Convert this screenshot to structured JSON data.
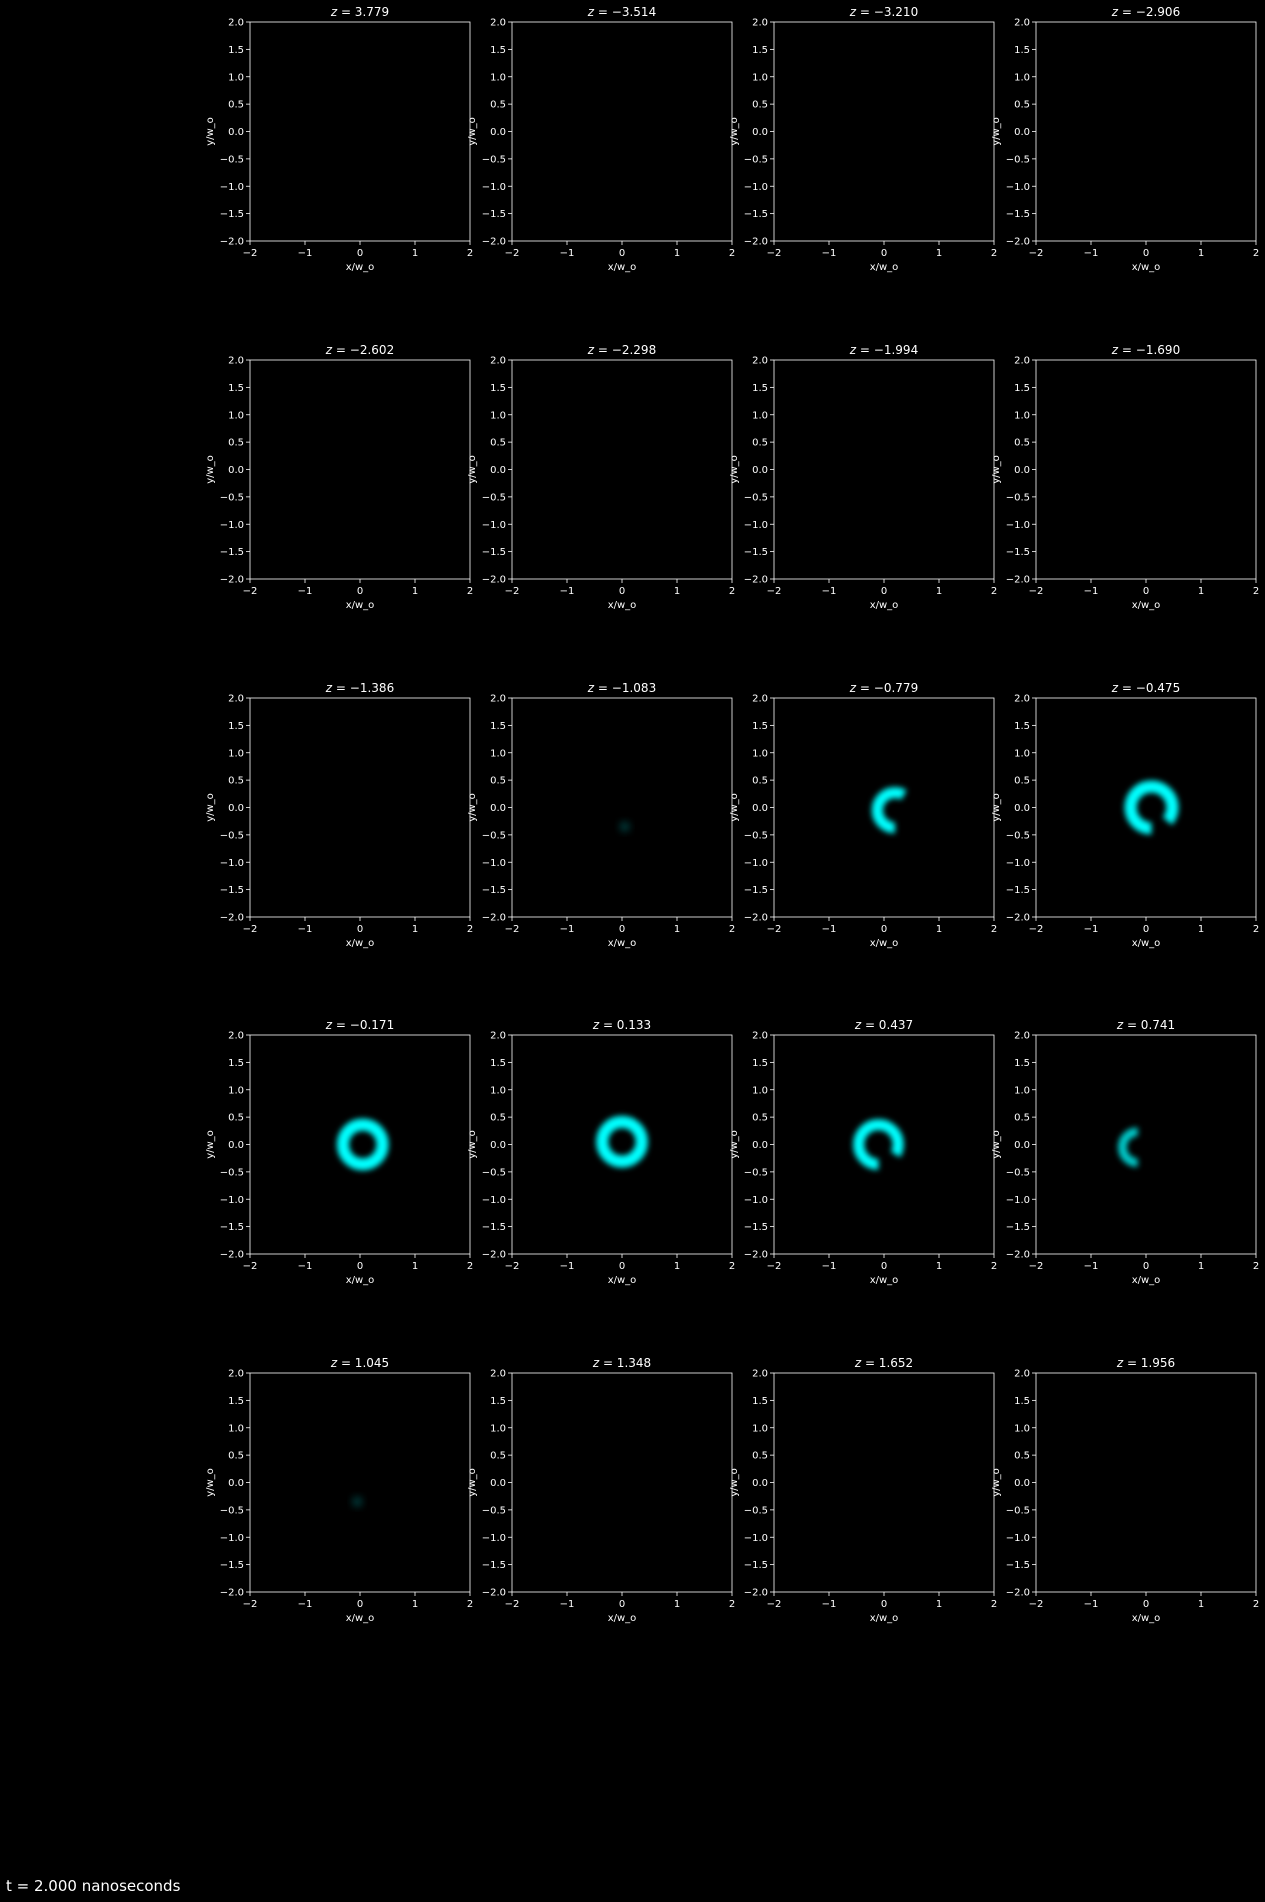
{
  "figure": {
    "background": "#000000",
    "foreground": "#ffffff",
    "ring_color": "#00ffff",
    "footer": "t = 2.000 nanoseconds"
  },
  "chart_data": {
    "type": "heatmap",
    "layout": "5x4 grid of panels",
    "xlabel": "x/w_o",
    "ylabel": "y/w_o",
    "xlim": [
      -2,
      2
    ],
    "ylim": [
      -2,
      2
    ],
    "xticks": [
      "-2",
      "-1",
      "0",
      "1",
      "2"
    ],
    "yticks": [
      "2.0",
      "1.5",
      "1.0",
      "0.5",
      "0.0",
      "-0.5",
      "-1.0",
      "-1.5",
      "-2.0"
    ],
    "grid": false,
    "colormap": "black to cyan",
    "panels": [
      {
        "z": "3.779",
        "intensity": 0,
        "x_center": 0,
        "y_center": 0,
        "ring_radius": 0,
        "ring_width": 0,
        "gap_angle_deg": 0
      },
      {
        "z": "−3.514",
        "intensity": 0,
        "x_center": 0,
        "y_center": 0,
        "ring_radius": 0,
        "ring_width": 0,
        "gap_angle_deg": 0
      },
      {
        "z": "−3.210",
        "intensity": 0,
        "x_center": 0,
        "y_center": 0,
        "ring_radius": 0,
        "ring_width": 0,
        "gap_angle_deg": 0
      },
      {
        "z": "−2.906",
        "intensity": 0,
        "x_center": 0,
        "y_center": 0,
        "ring_radius": 0,
        "ring_width": 0,
        "gap_angle_deg": 0
      },
      {
        "z": "−2.602",
        "intensity": 0,
        "x_center": 0,
        "y_center": 0,
        "ring_radius": 0,
        "ring_width": 0,
        "gap_angle_deg": 0
      },
      {
        "z": "−2.298",
        "intensity": 0,
        "x_center": 0,
        "y_center": 0,
        "ring_radius": 0,
        "ring_width": 0,
        "gap_angle_deg": 0
      },
      {
        "z": "−1.994",
        "intensity": 0,
        "x_center": 0,
        "y_center": 0,
        "ring_radius": 0,
        "ring_width": 0,
        "gap_angle_deg": 0
      },
      {
        "z": "−1.690",
        "intensity": 0,
        "x_center": 0,
        "y_center": 0,
        "ring_radius": 0,
        "ring_width": 0,
        "gap_angle_deg": 0
      },
      {
        "z": "−1.386",
        "intensity": 0,
        "x_center": 0,
        "y_center": 0,
        "ring_radius": 0,
        "ring_width": 0,
        "gap_angle_deg": 0
      },
      {
        "z": "−1.083",
        "intensity": 0.25,
        "x_center": 0.05,
        "y_center": -0.35,
        "ring_radius": 0.08,
        "ring_width": 0.08,
        "gap_angle_deg": 0
      },
      {
        "z": "−0.779",
        "intensity": 1.0,
        "x_center": 0.2,
        "y_center": -0.05,
        "ring_radius": 0.32,
        "ring_width": 0.2,
        "gap_angle_deg": 150
      },
      {
        "z": "−0.475",
        "intensity": 1.0,
        "x_center": 0.1,
        "y_center": 0.0,
        "ring_radius": 0.38,
        "ring_width": 0.22,
        "gap_angle_deg": 50
      },
      {
        "z": "−0.171",
        "intensity": 1.0,
        "x_center": 0.05,
        "y_center": 0.0,
        "ring_radius": 0.36,
        "ring_width": 0.22,
        "gap_angle_deg": 0
      },
      {
        "z": "0.133",
        "intensity": 1.0,
        "x_center": 0.0,
        "y_center": 0.05,
        "ring_radius": 0.36,
        "ring_width": 0.22,
        "gap_angle_deg": 0
      },
      {
        "z": "0.437",
        "intensity": 1.0,
        "x_center": -0.1,
        "y_center": 0.0,
        "ring_radius": 0.36,
        "ring_width": 0.2,
        "gap_angle_deg": 60
      },
      {
        "z": "0.741",
        "intensity": 0.8,
        "x_center": -0.15,
        "y_center": -0.05,
        "ring_radius": 0.28,
        "ring_width": 0.16,
        "gap_angle_deg": 180
      },
      {
        "z": "1.045",
        "intensity": 0.25,
        "x_center": -0.05,
        "y_center": -0.35,
        "ring_radius": 0.08,
        "ring_width": 0.08,
        "gap_angle_deg": 0
      },
      {
        "z": "1.348",
        "intensity": 0,
        "x_center": 0,
        "y_center": 0,
        "ring_radius": 0,
        "ring_width": 0,
        "gap_angle_deg": 0
      },
      {
        "z": "1.652",
        "intensity": 0,
        "x_center": 0,
        "y_center": 0,
        "ring_radius": 0,
        "ring_width": 0,
        "gap_angle_deg": 0
      },
      {
        "z": "1.956",
        "intensity": 0,
        "x_center": 0,
        "y_center": 0,
        "ring_radius": 0,
        "ring_width": 0,
        "gap_angle_deg": 0
      }
    ]
  }
}
